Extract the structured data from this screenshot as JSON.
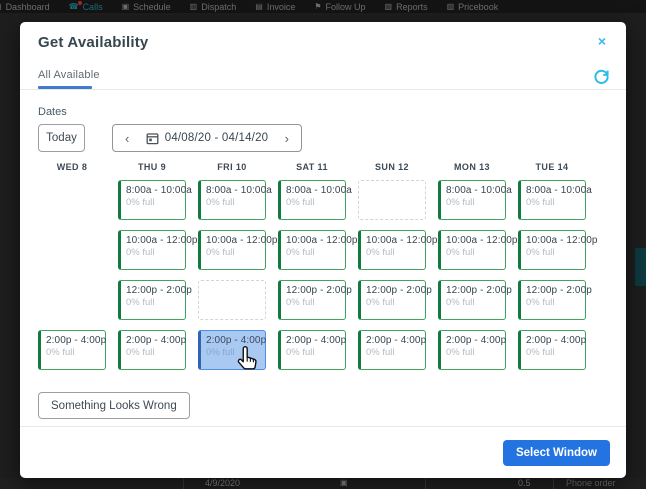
{
  "nav": {
    "items": [
      {
        "label": "Dashboard",
        "icon": "dashboard-icon",
        "accent": false,
        "badge": false
      },
      {
        "label": "Calls",
        "icon": "phone-icon",
        "accent": true,
        "badge": true
      },
      {
        "label": "Schedule",
        "icon": "calendar-icon",
        "accent": false,
        "badge": false
      },
      {
        "label": "Dispatch",
        "icon": "truck-icon",
        "accent": false,
        "badge": false
      },
      {
        "label": "Invoice",
        "icon": "document-icon",
        "accent": false,
        "badge": false
      },
      {
        "label": "Follow Up",
        "icon": "flag-icon",
        "accent": false,
        "badge": false
      },
      {
        "label": "Reports",
        "icon": "chart-icon",
        "accent": false,
        "badge": false
      },
      {
        "label": "Pricebook",
        "icon": "book-icon",
        "accent": false,
        "badge": false
      }
    ]
  },
  "modal": {
    "title": "Get Availability",
    "close_label": "×",
    "tab": {
      "label": "All Available"
    },
    "dates": {
      "label": "Dates",
      "today_label": "Today",
      "prev_label": "‹",
      "next_label": "›",
      "range": "04/08/20  -  04/14/20"
    },
    "grid": {
      "days": [
        "WED 8",
        "THU 9",
        "FRI 10",
        "SAT 11",
        "SUN 12",
        "MON 13",
        "TUE 14"
      ],
      "fill_label": "0% full",
      "rows": [
        {
          "time": "8:00a - 10:00a",
          "cells": [
            "none",
            "slot",
            "slot",
            "slot",
            "empty",
            "slot",
            "slot"
          ]
        },
        {
          "time": "10:00a - 12:00p",
          "cells": [
            "none",
            "slot",
            "slot",
            "slot",
            "slot",
            "slot",
            "slot"
          ]
        },
        {
          "time": "12:00p - 2:00p",
          "cells": [
            "none",
            "slot",
            "empty",
            "slot",
            "slot",
            "slot",
            "slot"
          ]
        },
        {
          "time": "2:00p - 4:00p",
          "cells": [
            "slot",
            "slot",
            "selected",
            "slot",
            "slot",
            "slot",
            "slot"
          ]
        }
      ]
    },
    "footer": {
      "wrong_label": "Something Looks Wrong",
      "select_label": "Select Window"
    }
  },
  "background_row": {
    "date": "4/9/2020",
    "value": "0.5",
    "note": "Phone order"
  },
  "colors": {
    "slot_green": "#3fa35c",
    "slot_green_dark": "#127a3e",
    "selected_blue_bg": "#a9c9f2",
    "selected_blue_border": "#4d8fe8",
    "accent_cyan": "#35b9ea",
    "tab_blue": "#4179cf",
    "primary_button_blue": "#2374e1"
  }
}
